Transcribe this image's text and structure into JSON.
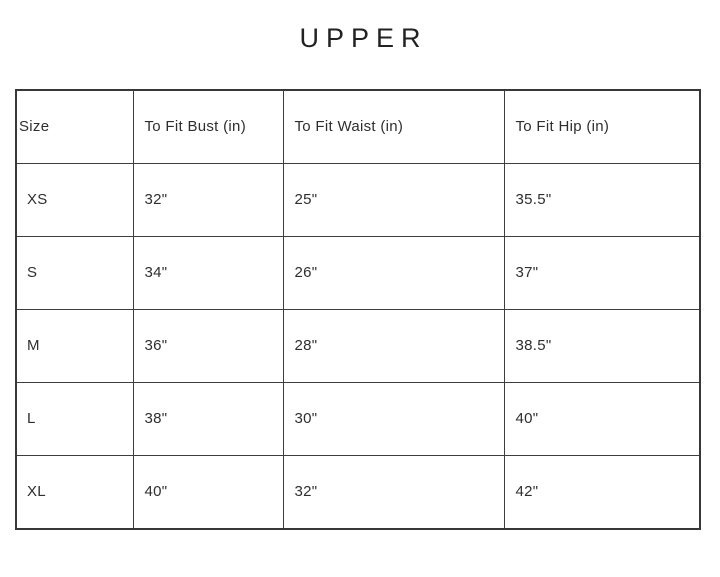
{
  "title": "UPPER",
  "table": {
    "columns": [
      "Size",
      "To Fit Bust (in)",
      "To Fit Waist (in)",
      "To Fit Hip (in)"
    ],
    "rows": [
      {
        "size": "XS",
        "bust": "32\"",
        "waist": "25\"",
        "hip": "35.5\""
      },
      {
        "size": "S",
        "bust": "34\"",
        "waist": "26\"",
        "hip": "37\""
      },
      {
        "size": "M",
        "bust": "36\"",
        "waist": "28\"",
        "hip": "38.5\""
      },
      {
        "size": "L",
        "bust": "38\"",
        "waist": "30\"",
        "hip": "40\""
      },
      {
        "size": "XL",
        "bust": "40\"",
        "waist": "32\"",
        "hip": "42\""
      }
    ]
  },
  "chart_data": {
    "type": "table",
    "title": "UPPER",
    "categories": [
      "XS",
      "S",
      "M",
      "L",
      "XL"
    ],
    "series": [
      {
        "name": "To Fit Bust (in)",
        "values": [
          32,
          34,
          36,
          38,
          40
        ]
      },
      {
        "name": "To Fit Waist (in)",
        "values": [
          25,
          26,
          28,
          30,
          32
        ]
      },
      {
        "name": "To Fit Hip (in)",
        "values": [
          35.5,
          37,
          38.5,
          40,
          42
        ]
      }
    ]
  }
}
